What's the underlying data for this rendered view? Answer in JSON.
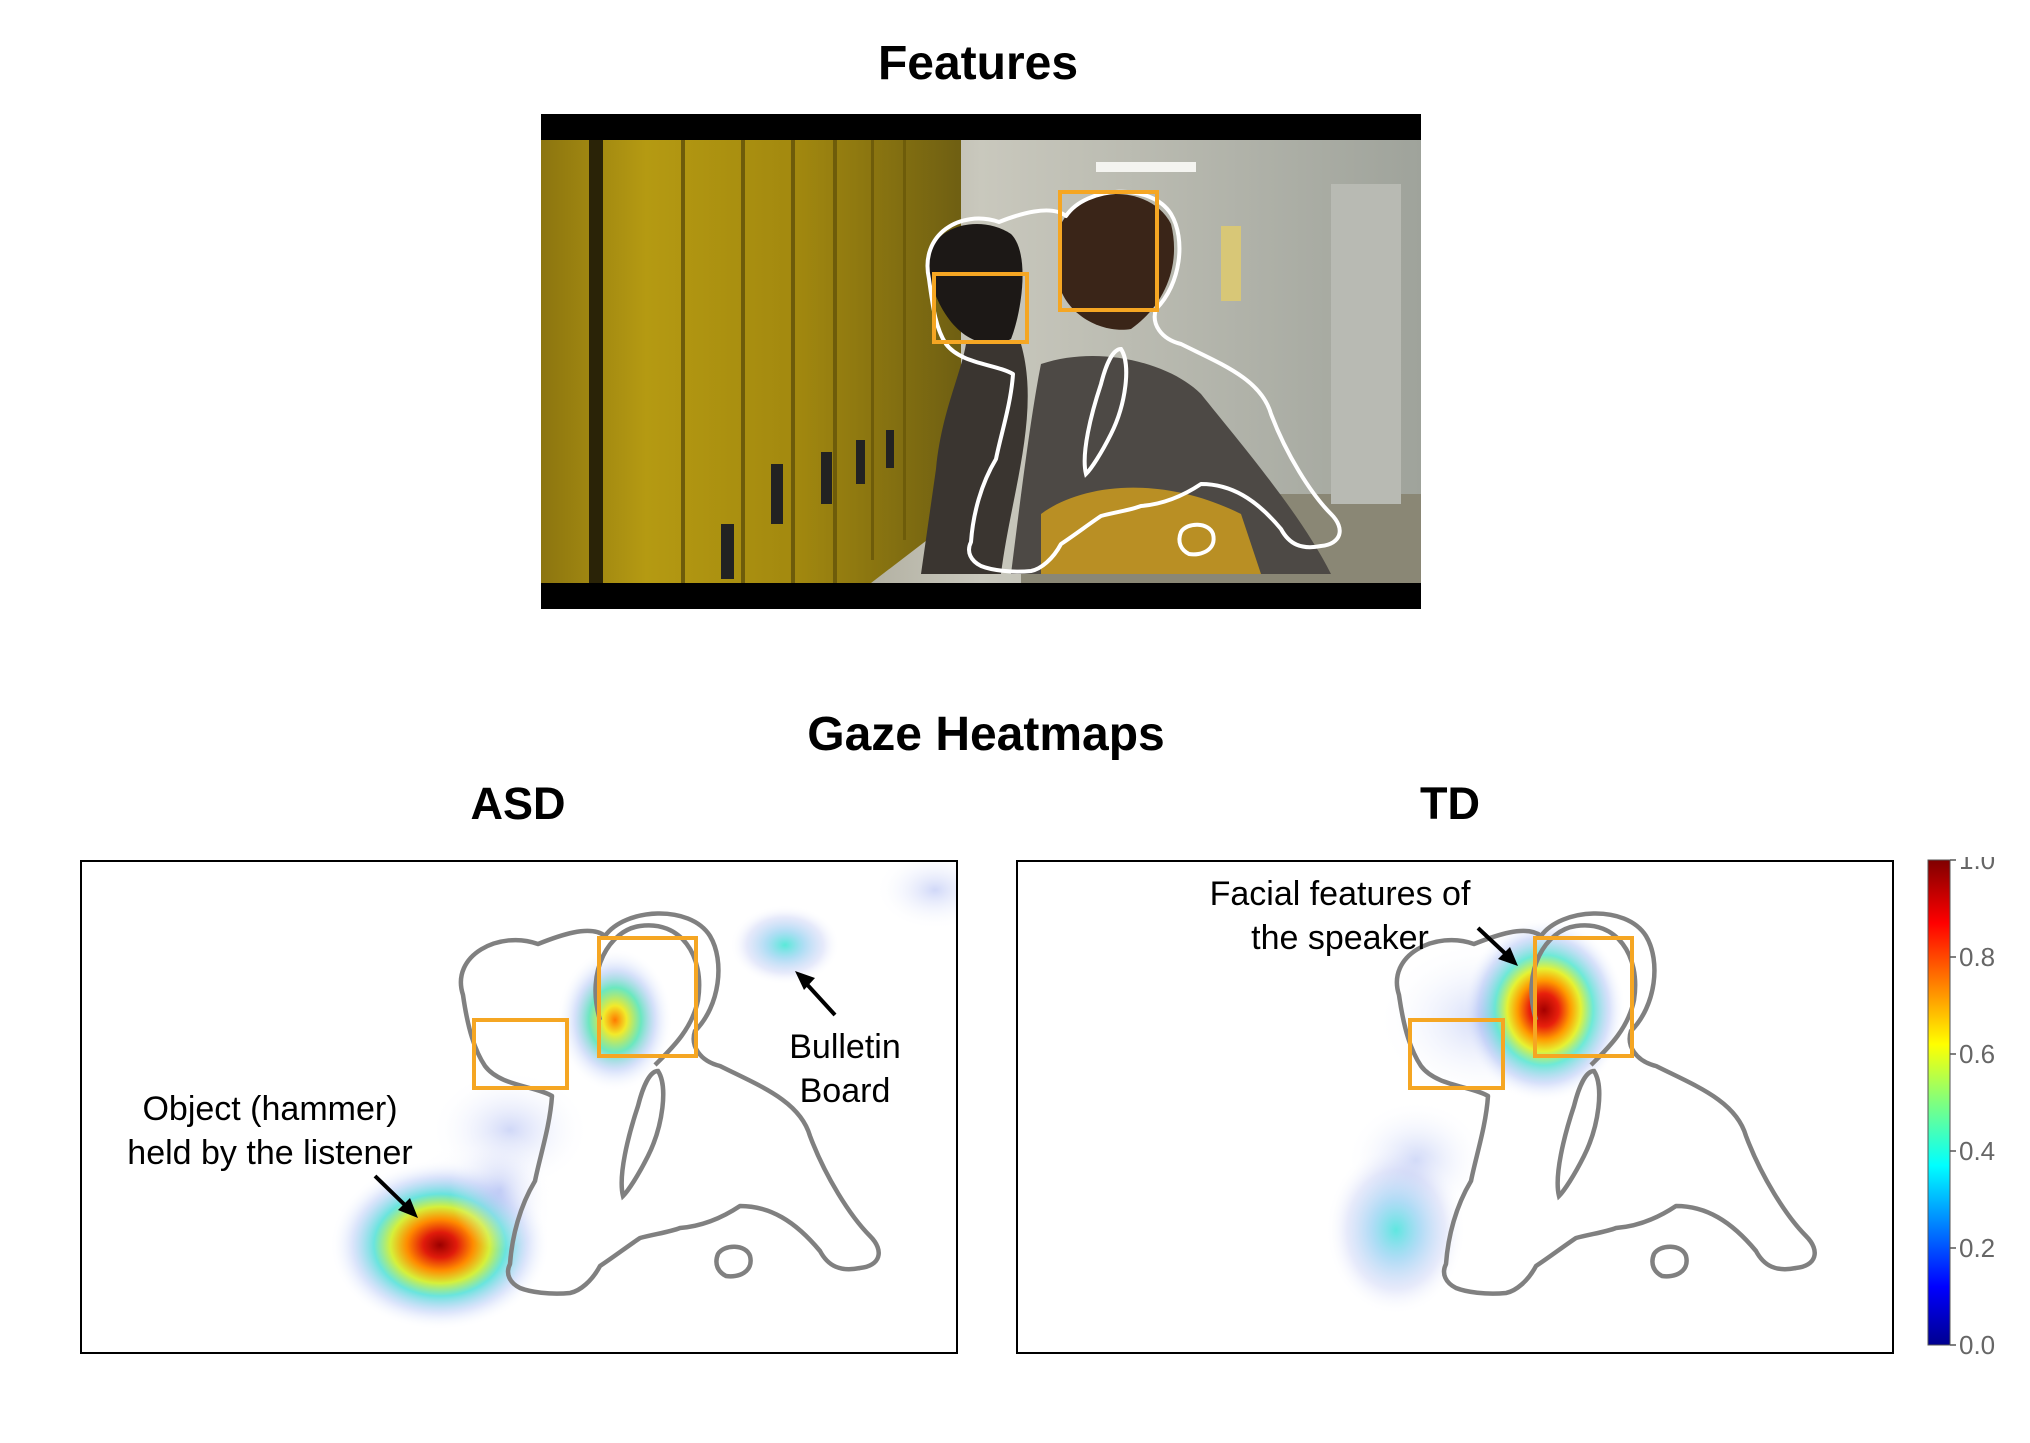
{
  "titles": {
    "features": "Features",
    "gaze_heatmaps": "Gaze Heatmaps",
    "asd": "ASD",
    "td": "TD"
  },
  "annotations": {
    "object_line1": "Object (hammer)",
    "object_line2": "held by the listener",
    "bulletin_line1": "Bulletin",
    "bulletin_line2": "Board",
    "face_line1": "Facial features of",
    "face_line2": "the speaker"
  },
  "colorbar": {
    "ticks": [
      "0.0",
      "0.2",
      "0.4",
      "0.6",
      "0.8",
      "1.0"
    ],
    "colormap": "jet",
    "min": 0.0,
    "max": 1.0
  },
  "colors": {
    "box": "#f5a623",
    "outline_photo": "#ffffff",
    "outline_heatmap": "#808080",
    "locker": "#b59a12",
    "letterbox": "#000000"
  }
}
